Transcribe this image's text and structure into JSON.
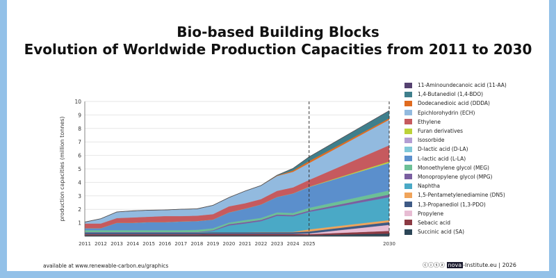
{
  "title_line1": "Bio-based Building Blocks",
  "title_line2": "Evolution of Worldwide Production Capacities from 2011 to 2030",
  "footer_left": "available at www.renewable-carbon.eu/graphics",
  "footer_cc": "ⓒⓘⓢⓐ",
  "footer_logo": "nova",
  "footer_right": "-Institute.eu | 2026",
  "chart_data": {
    "type": "area",
    "stacked": true,
    "ylabel": "production capacities (million tonnes)",
    "xlabel": "",
    "ylim": [
      0,
      10
    ],
    "yticks": [
      1,
      2,
      3,
      4,
      5,
      6,
      7,
      8,
      9,
      10
    ],
    "grid": true,
    "legend_position": "right",
    "x": [
      2011,
      2012,
      2013,
      2014,
      2015,
      2016,
      2017,
      2018,
      2019,
      2020,
      2021,
      2022,
      2023,
      2024,
      2025,
      2030
    ],
    "dashed_lines_at": [
      2025,
      2030
    ],
    "series": [
      {
        "name": "Succinic acid (SA)",
        "color": "#2c4657",
        "values": [
          0.08,
          0.08,
          0.08,
          0.08,
          0.08,
          0.08,
          0.08,
          0.08,
          0.08,
          0.08,
          0.08,
          0.08,
          0.08,
          0.08,
          0.08,
          0.2
        ]
      },
      {
        "name": "Sebacic acid",
        "color": "#8b3a43",
        "values": [
          0.08,
          0.08,
          0.08,
          0.08,
          0.08,
          0.08,
          0.08,
          0.08,
          0.1,
          0.1,
          0.1,
          0.1,
          0.1,
          0.1,
          0.08,
          0.2
        ]
      },
      {
        "name": "Propylene",
        "color": "#e7bcd3",
        "values": [
          0,
          0,
          0,
          0,
          0,
          0,
          0,
          0,
          0,
          0,
          0,
          0,
          0,
          0,
          0.05,
          0.45
        ]
      },
      {
        "name": "1,3-Propanediol (1,3-PDO)",
        "color": "#3e5a85",
        "values": [
          0.12,
          0.12,
          0.12,
          0.12,
          0.12,
          0.12,
          0.12,
          0.12,
          0.12,
          0.12,
          0.12,
          0.12,
          0.12,
          0.12,
          0.15,
          0.2
        ]
      },
      {
        "name": "1,5-Pentametylenediamine (DN5)",
        "color": "#f0a45a",
        "values": [
          0,
          0,
          0,
          0,
          0,
          0,
          0,
          0,
          0,
          0,
          0,
          0.02,
          0.02,
          0.03,
          0.15,
          0.15
        ]
      },
      {
        "name": "Naphtha",
        "color": "#4aa9c6",
        "values": [
          0,
          0,
          0,
          0,
          0,
          0,
          0,
          0,
          0.1,
          0.5,
          0.65,
          0.8,
          1.2,
          1.15,
          1.3,
          1.7
        ]
      },
      {
        "name": "Monopropylene glycol (MPG)",
        "color": "#7a5fa0",
        "values": [
          0.03,
          0.03,
          0.03,
          0.03,
          0.03,
          0.03,
          0.03,
          0.03,
          0.05,
          0.1,
          0.1,
          0.1,
          0.1,
          0.1,
          0.1,
          0.2
        ]
      },
      {
        "name": "Monoethylene glycol (MEG)",
        "color": "#6cc096",
        "values": [
          0.14,
          0.14,
          0.14,
          0.14,
          0.14,
          0.14,
          0.14,
          0.17,
          0.14,
          0.12,
          0.15,
          0.14,
          0.15,
          0.15,
          0.2,
          0.3
        ]
      },
      {
        "name": "L-lactic acid (L-LA)",
        "color": "#5b8fcc",
        "values": [
          0.15,
          0.15,
          0.55,
          0.55,
          0.6,
          0.6,
          0.65,
          0.65,
          0.65,
          0.75,
          0.85,
          1.0,
          1.15,
          1.45,
          1.55,
          2.05
        ]
      },
      {
        "name": "D-lactic acid (D-LA)",
        "color": "#7fc8d8",
        "values": [
          0,
          0,
          0,
          0,
          0,
          0,
          0,
          0,
          0,
          0,
          0,
          0,
          0,
          0,
          0,
          0
        ]
      },
      {
        "name": "Isosorbide",
        "color": "#b39ed3",
        "values": [
          0,
          0,
          0,
          0,
          0,
          0,
          0,
          0,
          0,
          0,
          0,
          0,
          0,
          0,
          0,
          0
        ]
      },
      {
        "name": "Furan derivatives",
        "color": "#bcd23a",
        "values": [
          0,
          0,
          0,
          0,
          0,
          0,
          0,
          0,
          0,
          0,
          0,
          0,
          0,
          0,
          0.02,
          0.1
        ]
      },
      {
        "name": "Ethylene",
        "color": "#c65a5e",
        "values": [
          0.35,
          0.35,
          0.35,
          0.4,
          0.4,
          0.45,
          0.4,
          0.4,
          0.4,
          0.45,
          0.4,
          0.4,
          0.45,
          0.45,
          0.5,
          1.2
        ]
      },
      {
        "name": "Epichlorohydrin (ECH)",
        "color": "#92badf",
        "values": [
          0.1,
          0.35,
          0.45,
          0.48,
          0.48,
          0.45,
          0.5,
          0.5,
          0.65,
          0.65,
          0.9,
          1.0,
          1.1,
          1.15,
          1.25,
          1.9
        ]
      },
      {
        "name": "Dodecanedioic acid (DDDA)",
        "color": "#e06b1f",
        "values": [
          0,
          0,
          0,
          0,
          0,
          0,
          0,
          0,
          0,
          0,
          0,
          0,
          0.03,
          0.1,
          0.15,
          0.1
        ]
      },
      {
        "name": "1,4-Butanediol (1,4-BDO)",
        "color": "#3f7f8c",
        "values": [
          0,
          0,
          0,
          0,
          0,
          0,
          0,
          0,
          0,
          0,
          0,
          0,
          0.02,
          0.15,
          0.3,
          0.55
        ]
      },
      {
        "name": "11-Aminoundecanoic acid (11-AA)",
        "color": "#554170",
        "values": [
          0.01,
          0.01,
          0.01,
          0.01,
          0.01,
          0.01,
          0.01,
          0.01,
          0.01,
          0.01,
          0.01,
          0.01,
          0.01,
          0.01,
          0.01,
          0.02
        ]
      }
    ]
  }
}
